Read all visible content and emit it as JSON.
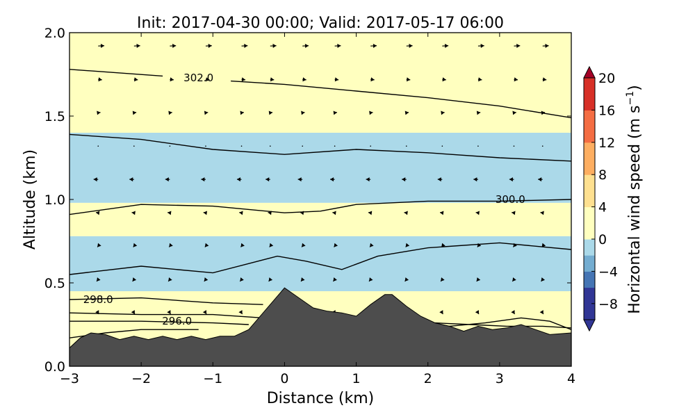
{
  "chart_data": {
    "type": "heatmap",
    "title": "Init: 2017-04-30 00:00; Valid: 2017-05-17 06:00",
    "xlabel": "Distance (km)",
    "ylabel": "Altitude (km)",
    "xlim": [
      -3,
      4
    ],
    "ylim": [
      0,
      2
    ],
    "x_ticks": [
      -3,
      -2,
      -1,
      0,
      1,
      2,
      3,
      4
    ],
    "x_tick_labels": [
      "−3",
      "−2",
      "−1",
      "0",
      "1",
      "2",
      "3",
      "4"
    ],
    "y_ticks": [
      0.0,
      0.5,
      1.0,
      1.5,
      2.0
    ],
    "y_tick_labels": [
      "0.0",
      "0.5",
      "1.0",
      "1.5",
      "2.0"
    ],
    "colorbar": {
      "label": "Horizontal wind speed (m s",
      "label_exponent": "−1",
      "label_close": ")",
      "range": [
        -10,
        20
      ],
      "extend": "both",
      "ticks": [
        -8,
        -4,
        0,
        4,
        8,
        12,
        16,
        20
      ],
      "tick_labels": [
        "−8",
        "−4",
        "0",
        "4",
        "8",
        "12",
        "16",
        "20"
      ],
      "colors": {
        "negative": [
          "#313695",
          "#4575b4",
          "#74add1",
          "#abd9e9",
          "#e0f3f8"
        ],
        "positive": [
          "#ffffbf",
          "#fee090",
          "#fdae61",
          "#f46d43",
          "#d73027",
          "#a50026"
        ],
        "terrain": "#4d4d4d"
      }
    },
    "terrain": {
      "x": [
        -3,
        -2.85,
        -2.7,
        -2.5,
        -2.3,
        -2.1,
        -1.9,
        -1.7,
        -1.5,
        -1.3,
        -1.1,
        -0.9,
        -0.7,
        -0.5,
        -0.3,
        -0.1,
        0,
        0.2,
        0.4,
        0.6,
        0.8,
        1.0,
        1.2,
        1.4,
        1.5,
        1.7,
        1.9,
        2.1,
        2.3,
        2.5,
        2.7,
        2.9,
        3.1,
        3.3,
        3.5,
        3.7,
        4
      ],
      "y": [
        0.11,
        0.17,
        0.2,
        0.19,
        0.16,
        0.18,
        0.16,
        0.18,
        0.16,
        0.18,
        0.16,
        0.18,
        0.18,
        0.22,
        0.32,
        0.42,
        0.47,
        0.41,
        0.35,
        0.33,
        0.32,
        0.3,
        0.37,
        0.43,
        0.43,
        0.36,
        0.3,
        0.26,
        0.24,
        0.21,
        0.24,
        0.22,
        0.23,
        0.25,
        0.22,
        0.19,
        0.2
      ]
    },
    "wind_field": [
      {
        "y0": 0.0,
        "y1": 0.45,
        "value": 1.5
      },
      {
        "y0": 0.45,
        "y1": 0.55,
        "value": -1.5
      },
      {
        "y0": 0.55,
        "y1": 0.78,
        "value": -0.5
      },
      {
        "y0": 0.78,
        "y1": 0.98,
        "value": 0.3
      },
      {
        "y0": 0.98,
        "y1": 1.2,
        "value": -1.0
      },
      {
        "y0": 1.2,
        "y1": 1.4,
        "value": -0.3
      },
      {
        "y0": 1.4,
        "y1": 1.6,
        "value": 1.5
      },
      {
        "y0": 1.6,
        "y1": 1.8,
        "value": 2.5
      },
      {
        "y0": 1.8,
        "y1": 2.0,
        "value": 3.0
      }
    ],
    "contours": [
      {
        "x": [
          -3,
          -1.7
        ],
        "y": [
          1.78,
          1.74
        ]
      },
      {
        "x": [
          -0.75,
          0,
          1,
          2,
          3,
          4
        ],
        "y": [
          1.71,
          1.69,
          1.65,
          1.61,
          1.56,
          1.49
        ]
      },
      {
        "x": [
          -3,
          -2,
          -1,
          0,
          1,
          2,
          3,
          4
        ],
        "y": [
          1.39,
          1.36,
          1.3,
          1.27,
          1.3,
          1.28,
          1.25,
          1.23
        ]
      },
      {
        "x": [
          -3,
          -2,
          -1,
          0,
          0.5,
          1,
          2,
          3,
          4
        ],
        "y": [
          0.91,
          0.97,
          0.96,
          0.92,
          0.93,
          0.97,
          0.99,
          0.99,
          1.0
        ]
      },
      {
        "x": [
          -3,
          -2,
          -1,
          -0.1,
          0.3,
          0.8,
          1.3,
          2,
          3,
          4
        ],
        "y": [
          0.55,
          0.6,
          0.56,
          0.66,
          0.63,
          0.58,
          0.66,
          0.71,
          0.74,
          0.7
        ]
      },
      {
        "x": [
          -3,
          -2,
          -1,
          -0.3
        ],
        "y": [
          0.4,
          0.41,
          0.38,
          0.37
        ]
      },
      {
        "x": [
          -3,
          -2,
          -1,
          -0.3
        ],
        "y": [
          0.32,
          0.31,
          0.31,
          0.29
        ]
      },
      {
        "x": [
          -3,
          -2,
          -1,
          -0.5
        ],
        "y": [
          0.27,
          0.27,
          0.26,
          0.25
        ]
      },
      {
        "x": [
          -3,
          -2.5,
          -2,
          -1.5,
          -1.2
        ],
        "y": [
          0.17,
          0.2,
          0.22,
          0.22,
          0.22
        ]
      },
      {
        "x": [
          1.8,
          2.3,
          2.8,
          3.3,
          3.7,
          4.0
        ],
        "y": [
          0.21,
          0.24,
          0.26,
          0.29,
          0.27,
          0.22
        ]
      },
      {
        "x": [
          2.1,
          2.6,
          3.1,
          3.6,
          4.0
        ],
        "y": [
          0.26,
          0.25,
          0.24,
          0.24,
          0.23
        ]
      }
    ],
    "contour_labels": [
      {
        "text": "302.0",
        "x": -1.2,
        "y": 1.73
      },
      {
        "text": "300.0",
        "x": 3.15,
        "y": 1.0
      },
      {
        "text": "298.0",
        "x": -2.6,
        "y": 0.4
      },
      {
        "text": "296.0",
        "x": -1.5,
        "y": 0.27
      }
    ],
    "vector_rows": [
      {
        "y": 1.92,
        "u": 4.0,
        "v": 0.2
      },
      {
        "y": 1.72,
        "u": 2.5,
        "v": -0.3
      },
      {
        "y": 1.52,
        "u": 1.5,
        "v": 0.2
      },
      {
        "y": 1.32,
        "u": 0.4,
        "v": 0.0
      },
      {
        "y": 1.12,
        "u": -3.0,
        "v": 0.1
      },
      {
        "y": 0.92,
        "u": -1.5,
        "v": 0.2
      },
      {
        "y": 0.72,
        "u": -0.5,
        "v": -0.6
      },
      {
        "y": 0.52,
        "u": -1.0,
        "v": -1.2
      },
      {
        "y": 0.32,
        "u": 0.5,
        "v": -0.8
      }
    ],
    "vector_x": [
      -2.6,
      -2.1,
      -1.6,
      -1.1,
      -0.6,
      -0.2,
      0.25,
      0.7,
      1.2,
      1.7,
      2.2,
      2.7,
      3.2,
      3.6
    ]
  }
}
